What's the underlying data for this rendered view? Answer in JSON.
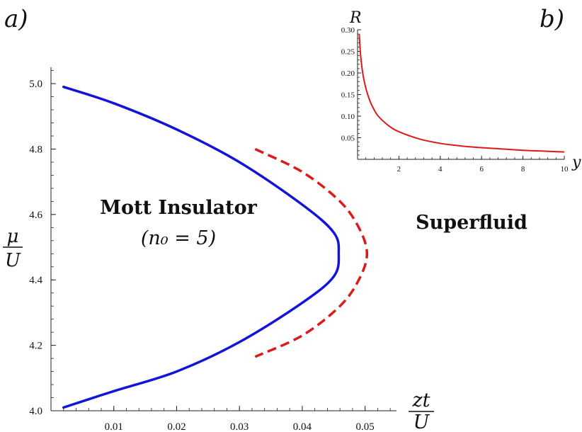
{
  "panel_labels": {
    "a": "a)",
    "b": "b)"
  },
  "main": {
    "ylabel_num": "μ",
    "ylabel_den": "U",
    "xlabel_num": "zt",
    "xlabel_den": "U",
    "region_mott": "Mott Insulator",
    "region_mott_sub": "(n₀ = 5)",
    "region_sf": "Superfluid"
  },
  "inset": {
    "ylabel": "R",
    "xlabel": "y"
  },
  "chart_data": [
    {
      "type": "line",
      "xlim": [
        0,
        0.055
      ],
      "ylim": [
        4.0,
        5.05
      ],
      "x_ticks": [
        "0.01",
        "0.02",
        "0.03",
        "0.04",
        "0.05"
      ],
      "y_ticks": [
        "4.0",
        "4.2",
        "4.4",
        "4.6",
        "4.8",
        "5.0"
      ],
      "series": [
        {
          "style": "solid",
          "color": "#1414d8",
          "x": [
            0.002,
            0.01,
            0.02,
            0.03,
            0.04,
            0.045,
            0.0458,
            0.045,
            0.04,
            0.03,
            0.02,
            0.01,
            0.002
          ],
          "y": [
            4.99,
            4.94,
            4.86,
            4.76,
            4.63,
            4.545,
            4.48,
            4.41,
            4.33,
            4.21,
            4.12,
            4.06,
            4.01
          ]
        },
        {
          "style": "dashed",
          "color": "#dd1a1a",
          "x": [
            0.0325,
            0.04,
            0.046,
            0.049,
            0.0503,
            0.049,
            0.046,
            0.04,
            0.0325
          ],
          "y": [
            4.8,
            4.73,
            4.64,
            4.56,
            4.48,
            4.4,
            4.32,
            4.23,
            4.165
          ]
        }
      ]
    },
    {
      "type": "line",
      "xlim": [
        0,
        10
      ],
      "ylim": [
        0,
        0.3
      ],
      "x_ticks": [
        "2",
        "4",
        "6",
        "8",
        "10"
      ],
      "y_ticks": [
        "0.05",
        "0.10",
        "0.15",
        "0.20",
        "0.25",
        "0.30"
      ],
      "series": [
        {
          "color": "#dd1a1a",
          "x": [
            0.08,
            0.15,
            0.25,
            0.4,
            0.6,
            0.8,
            1.0,
            1.5,
            2.0,
            3.0,
            4.0,
            5.0,
            6.0,
            7.0,
            8.0,
            9.0,
            10.0
          ],
          "y": [
            0.29,
            0.24,
            0.2,
            0.165,
            0.135,
            0.115,
            0.1,
            0.078,
            0.064,
            0.047,
            0.037,
            0.031,
            0.027,
            0.024,
            0.021,
            0.019,
            0.017
          ]
        }
      ]
    }
  ]
}
